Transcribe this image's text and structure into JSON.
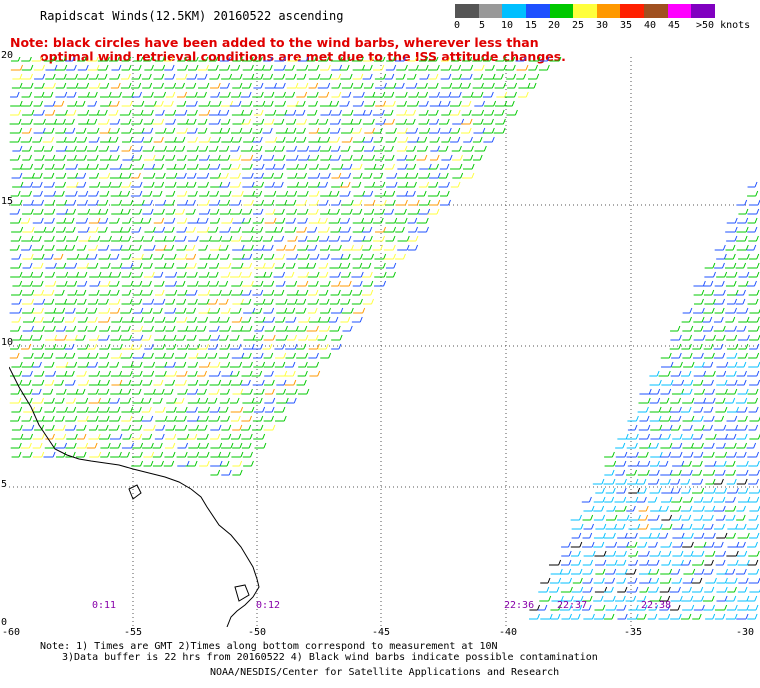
{
  "title": "Rapidscat Winds(12.5KM) 20160522 ascending",
  "note_line1": "Note: black circles have been added to the wind barbs, wherever less than",
  "note_line2": "optimal wind retrieval conditions are met due to the ISS attitude changes.",
  "legend": {
    "labels": [
      "0",
      "5",
      "10",
      "15",
      "20",
      "25",
      "30",
      "35",
      "40",
      "45",
      ">50 knots"
    ],
    "colors": [
      "#555555",
      "#999999",
      "#00bfff",
      "#1e50ff",
      "#00c800",
      "#ffff3c",
      "#ff9900",
      "#ff2000",
      "#a05020",
      "#ff00ff",
      "#8000c0"
    ]
  },
  "axes": {
    "lat_labels": [
      "20",
      "15",
      "10",
      "5",
      "0"
    ],
    "lon_labels": [
      "-60",
      "-55",
      "-50",
      "-45",
      "-40",
      "-35",
      "-30"
    ]
  },
  "times": [
    "0:11",
    "0:12",
    "22:36",
    "22:37",
    "22:38"
  ],
  "footnote_line1": "Note: 1) Times are GMT 2)Times along bottom correspond to measurement at 10N",
  "footnote_line2": "3)Data buffer is 22 hrs from 20160522 4) Black wind barbs indicate possible contamination",
  "credit": "NOAA/NESDIS/Center for Satellite Applications and Research"
}
